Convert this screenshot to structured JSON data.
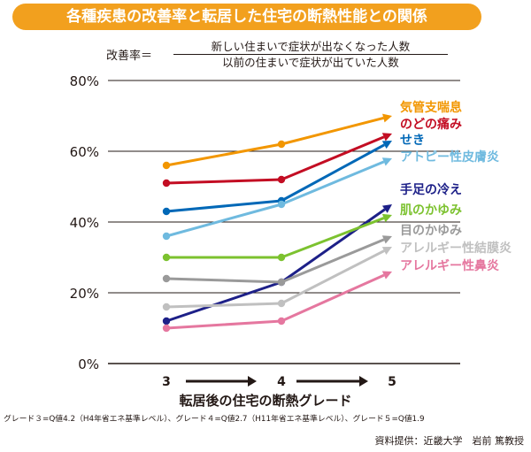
{
  "title": "各種疾患の改善率と転居した住宅の断熱性能との関係",
  "formula": {
    "label": "改善率＝",
    "numerator": "新しい住まいで症状が出なくなった人数",
    "denominator": "以前の住まいで症状が出ていた人数"
  },
  "footnote": "グレード３=Q値4.2（H4年省エネ基準レベル）、グレード４=Q値2.7（H11年省エネ基準レベル）、グレード５=Q値1.9",
  "source": "資料提供：近畿大学　岩前 篤教授",
  "chart_data": {
    "type": "line",
    "x": [
      "3",
      "4",
      "5"
    ],
    "xlabel": "転居後の住宅の断熱グレード",
    "ylabel": "",
    "ylim": [
      0,
      80
    ],
    "yticks": [
      0,
      20,
      40,
      60,
      80
    ],
    "ytick_labels": [
      "0%",
      "20%",
      "40%",
      "60%",
      "80%"
    ],
    "grid": true,
    "legend": "right",
    "series": [
      {
        "name": "気管支喘息",
        "values": [
          56,
          62,
          70
        ],
        "color": "#f29600"
      },
      {
        "name": "のどの痛み",
        "values": [
          51,
          52,
          65
        ],
        "color": "#c30d23"
      },
      {
        "name": "せき",
        "values": [
          43,
          46,
          63
        ],
        "color": "#0068b7"
      },
      {
        "name": "アトピー性皮膚炎",
        "values": [
          36,
          45,
          58
        ],
        "color": "#6fbadf"
      },
      {
        "name": "手足の冷え",
        "values": [
          12,
          23,
          45
        ],
        "color": "#1d2088"
      },
      {
        "name": "肌のかゆみ",
        "values": [
          30,
          30,
          42
        ],
        "color": "#7cc22f"
      },
      {
        "name": "目のかゆみ",
        "values": [
          24,
          23,
          36
        ],
        "color": "#9a9a9a"
      },
      {
        "name": "アレルギー性結膜炎",
        "values": [
          16,
          17,
          33
        ],
        "color": "#c0c0c0"
      },
      {
        "name": "アレルギー性鼻炎",
        "values": [
          10,
          12,
          26
        ],
        "color": "#e5779f"
      }
    ]
  }
}
